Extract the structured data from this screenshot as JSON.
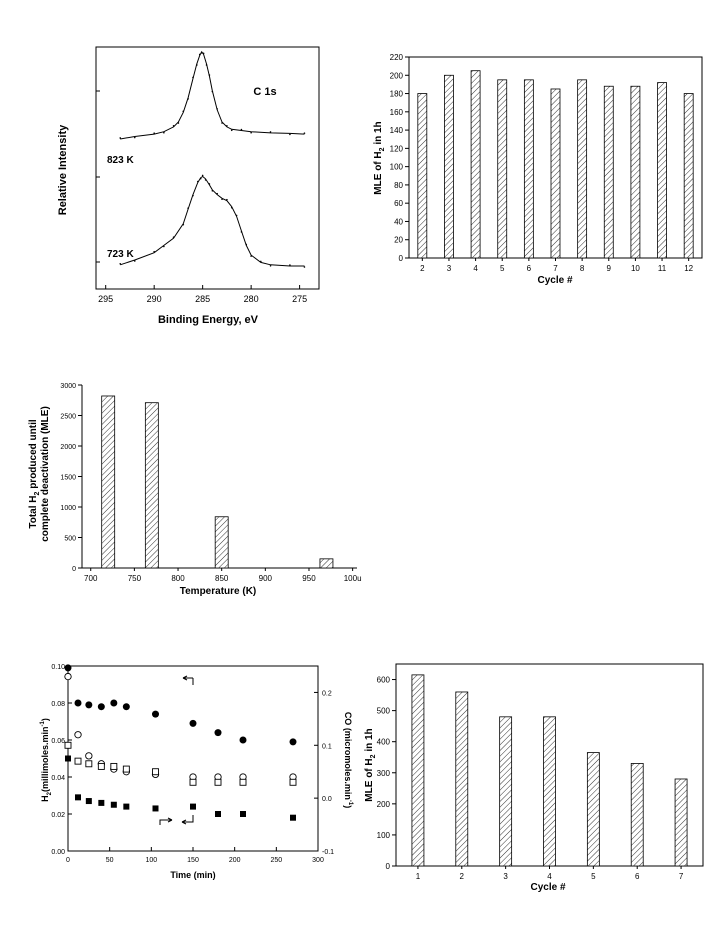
{
  "chart_data": [
    {
      "id": "xps",
      "type": "line",
      "title": "C 1s",
      "xlabel": "Binding Energy, eV",
      "ylabel": "Relative Intensity",
      "xlim": [
        296,
        273
      ],
      "x_ticks": [
        295,
        290,
        285,
        280,
        275
      ],
      "x_reversed": true,
      "series": [
        {
          "name": "823 K",
          "x": [
            293.5,
            292,
            290,
            289,
            288,
            287.5,
            287,
            286.5,
            286,
            285.6,
            285.3,
            285.1,
            284.9,
            284.6,
            284.3,
            284,
            283.5,
            283,
            282.5,
            282,
            281,
            280,
            278,
            276,
            274.5
          ],
          "y": [
            0.62,
            0.63,
            0.64,
            0.65,
            0.67,
            0.69,
            0.73,
            0.79,
            0.87,
            0.93,
            0.965,
            0.98,
            0.97,
            0.93,
            0.88,
            0.82,
            0.74,
            0.69,
            0.67,
            0.66,
            0.655,
            0.65,
            0.645,
            0.643,
            0.64
          ]
        },
        {
          "name": "723 K",
          "x": [
            293.5,
            292,
            290,
            289,
            288,
            287,
            286.5,
            286,
            285.5,
            285.2,
            285,
            284.7,
            284.3,
            284,
            283.5,
            283,
            282.5,
            282,
            281.5,
            281,
            280.5,
            280,
            279,
            278,
            276,
            274.5
          ],
          "y": [
            0.1,
            0.12,
            0.15,
            0.18,
            0.21,
            0.27,
            0.33,
            0.39,
            0.44,
            0.46,
            0.465,
            0.455,
            0.43,
            0.41,
            0.39,
            0.375,
            0.365,
            0.34,
            0.3,
            0.24,
            0.18,
            0.14,
            0.11,
            0.1,
            0.095,
            0.095
          ]
        }
      ]
    },
    {
      "id": "cycles12",
      "type": "bar",
      "categories": [
        "2",
        "3",
        "4",
        "5",
        "6",
        "7",
        "8",
        "9",
        "10",
        "11",
        "12"
      ],
      "values": [
        180,
        200,
        205,
        195,
        195,
        185,
        195,
        188,
        188,
        192,
        180
      ],
      "xlabel": "Cycle #",
      "ylabel_parts": [
        "MLE of H",
        "2",
        " in 1h"
      ],
      "ylim": [
        0,
        220
      ],
      "y_ticks": [
        0,
        20,
        40,
        60,
        80,
        100,
        120,
        140,
        160,
        180,
        200,
        220
      ]
    },
    {
      "id": "temperature",
      "type": "bar",
      "x": [
        720,
        770,
        850,
        970
      ],
      "values": [
        2820,
        2710,
        840,
        150
      ],
      "xlabel": "Temperature (K)",
      "ylabel_line1_parts": [
        "Total H",
        "2",
        " produced until"
      ],
      "ylabel_line2": "complete deactivation (MLE)",
      "xlim": [
        690,
        1005
      ],
      "x_ticks": [
        "700",
        "750",
        "800",
        "850",
        "900",
        "950",
        "100u"
      ],
      "ylim": [
        0,
        3000
      ],
      "y_ticks": [
        0,
        500,
        1000,
        1500,
        2000,
        2500,
        3000
      ]
    },
    {
      "id": "time",
      "type": "scatter",
      "xlabel": "Time (min)",
      "ylabel_left_parts": [
        "H",
        "2",
        "(millimoles.min",
        "-1",
        ")"
      ],
      "ylabel_right_parts": [
        "CO (micromoles.min",
        "-1",
        ")"
      ],
      "xlim": [
        0,
        300
      ],
      "x_ticks": [
        0,
        50,
        100,
        150,
        200,
        250,
        300
      ],
      "ylim_left": [
        0,
        0.1
      ],
      "y_ticks_left": [
        "0.00",
        "0.02",
        "0.04",
        "0.06",
        "0.08",
        "0.10"
      ],
      "ylim_right": [
        -0.1,
        0.25
      ],
      "y_ticks_right": [
        "-0.1",
        "0.0",
        "0.1",
        "0.2"
      ],
      "series": [
        {
          "marker": "filled-circle",
          "axis": "left",
          "x": [
            0,
            12,
            25,
            40,
            55,
            70,
            105,
            150,
            180,
            210,
            270
          ],
          "y": [
            0.099,
            0.08,
            0.079,
            0.078,
            0.08,
            0.078,
            0.074,
            0.069,
            0.064,
            0.06,
            0.059
          ]
        },
        {
          "marker": "open-circle",
          "axis": "right",
          "x": [
            0,
            12,
            25,
            40,
            55,
            70,
            105,
            150,
            180,
            210,
            270
          ],
          "y": [
            0.23,
            0.12,
            0.08,
            0.065,
            0.055,
            0.05,
            0.045,
            0.04,
            0.04,
            0.04,
            0.04
          ]
        },
        {
          "marker": "open-square",
          "axis": "right",
          "x": [
            0,
            12,
            25,
            40,
            55,
            70,
            105,
            150,
            180,
            210,
            270
          ],
          "y": [
            0.1,
            0.07,
            0.065,
            0.06,
            0.06,
            0.055,
            0.05,
            0.03,
            0.03,
            0.03,
            0.03
          ]
        },
        {
          "marker": "filled-square",
          "axis": "left",
          "x": [
            0,
            12,
            25,
            40,
            55,
            70,
            105,
            150,
            180,
            210,
            270
          ],
          "y": [
            0.05,
            0.029,
            0.027,
            0.026,
            0.025,
            0.024,
            0.023,
            0.024,
            0.02,
            0.02,
            0.018
          ]
        }
      ]
    },
    {
      "id": "cycles7",
      "type": "bar",
      "categories": [
        "1",
        "2",
        "3",
        "4",
        "5",
        "6",
        "7"
      ],
      "values": [
        615,
        560,
        480,
        480,
        365,
        330,
        280
      ],
      "xlabel": "Cycle #",
      "ylabel_parts": [
        "MLE of H",
        "2",
        " in 1h"
      ],
      "ylim": [
        0,
        650
      ],
      "y_ticks": [
        0,
        100,
        200,
        300,
        400,
        500,
        600
      ]
    }
  ]
}
